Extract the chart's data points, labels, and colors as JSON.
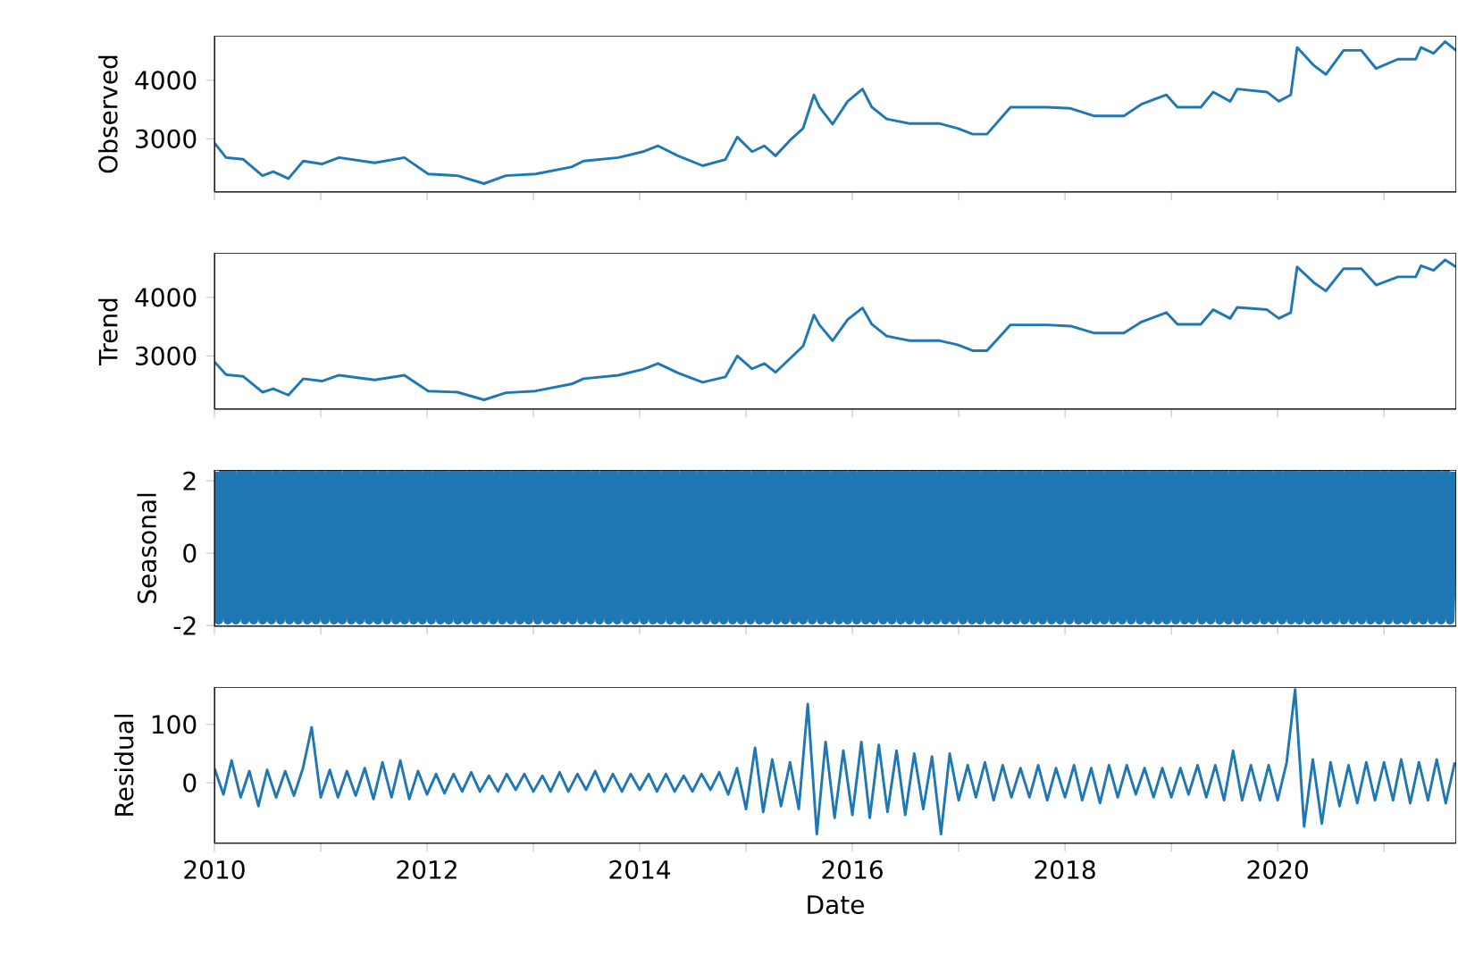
{
  "chart_data": [
    {
      "type": "line",
      "ylabel": "Observed",
      "color": "#1f77b4",
      "tick_labels": "y",
      "xlim": [
        "2010-01-01",
        "2021-09-06"
      ],
      "ylim": [
        2090,
        4760
      ],
      "yticks": [
        3000,
        4000
      ],
      "xticks": [
        "2010",
        {
          "value": "2011",
          "label": null
        },
        "2012",
        {
          "value": "2013",
          "label": null
        },
        "2014",
        {
          "value": "2015",
          "label": null
        },
        "2016",
        {
          "value": "2017",
          "label": null
        },
        "2018",
        {
          "value": "2019",
          "label": null
        },
        "2020",
        {
          "value": "2021",
          "label": null
        }
      ],
      "x": [
        "2010-01-01",
        "2010-02-10",
        "2010-04-10",
        "2010-06-15",
        "2010-07-22",
        "2010-09-12",
        "2010-11-02",
        "2011-01-05",
        "2011-03-05",
        "2011-07-05",
        "2011-10-15",
        "2012-01-05",
        "2012-04-15",
        "2012-07-15",
        "2012-09-28",
        "2013-01-08",
        "2013-05-12",
        "2013-06-22",
        "2013-10-20",
        "2014-01-12",
        "2014-03-05",
        "2014-05-12",
        "2014-08-05",
        "2014-10-22",
        "2014-12-02",
        "2015-01-22",
        "2015-03-05",
        "2015-04-12",
        "2015-06-02",
        "2015-07-16",
        "2015-08-22",
        "2015-09-10",
        "2015-10-25",
        "2015-12-16",
        "2016-02-05",
        "2016-03-08",
        "2016-04-28",
        "2016-07-16",
        "2016-10-28",
        "2016-12-28",
        "2017-02-18",
        "2017-04-08",
        "2017-06-28",
        "2017-10-30",
        "2018-01-20",
        "2018-04-12",
        "2018-07-22",
        "2018-09-20",
        "2018-12-15",
        "2019-01-22",
        "2019-04-12",
        "2019-05-25",
        "2019-07-22",
        "2019-08-15",
        "2019-11-25",
        "2020-01-05",
        "2020-02-15",
        "2020-03-08",
        "2020-05-05",
        "2020-06-15",
        "2020-08-15",
        "2020-10-15",
        "2020-12-05",
        "2021-02-18",
        "2021-04-20",
        "2021-05-08",
        "2021-06-20",
        "2021-07-30",
        "2021-09-05"
      ],
      "values": [
        2930,
        2680,
        2650,
        2370,
        2440,
        2320,
        2620,
        2570,
        2680,
        2590,
        2680,
        2400,
        2370,
        2235,
        2370,
        2400,
        2520,
        2620,
        2680,
        2780,
        2880,
        2710,
        2540,
        2645,
        3030,
        2780,
        2880,
        2710,
        2980,
        3180,
        3750,
        3540,
        3250,
        3640,
        3850,
        3540,
        3340,
        3260,
        3260,
        3180,
        3080,
        3080,
        3540,
        3540,
        3520,
        3390,
        3390,
        3590,
        3750,
        3540,
        3540,
        3800,
        3640,
        3850,
        3800,
        3640,
        3750,
        4560,
        4250,
        4100,
        4510,
        4510,
        4200,
        4360,
        4360,
        4560,
        4460,
        4660,
        4510
      ]
    },
    {
      "type": "line",
      "ylabel": "Trend",
      "color": "#1f77b4",
      "tick_labels": "y",
      "xlim": [
        "2010-01-01",
        "2021-09-06"
      ],
      "ylim": [
        2090,
        4760
      ],
      "yticks": [
        3000,
        4000
      ],
      "xticks": [
        "2010",
        {
          "value": "2011",
          "label": null
        },
        "2012",
        {
          "value": "2013",
          "label": null
        },
        "2014",
        {
          "value": "2015",
          "label": null
        },
        "2016",
        {
          "value": "2017",
          "label": null
        },
        "2018",
        {
          "value": "2019",
          "label": null
        },
        "2020",
        {
          "value": "2021",
          "label": null
        }
      ],
      "x": [
        "2010-01-01",
        "2010-02-10",
        "2010-04-10",
        "2010-06-15",
        "2010-07-22",
        "2010-09-12",
        "2010-11-02",
        "2011-01-05",
        "2011-03-05",
        "2011-07-05",
        "2011-10-15",
        "2012-01-05",
        "2012-04-15",
        "2012-07-15",
        "2012-09-28",
        "2013-01-08",
        "2013-05-12",
        "2013-06-22",
        "2013-10-20",
        "2014-01-12",
        "2014-03-05",
        "2014-05-12",
        "2014-08-05",
        "2014-10-22",
        "2014-12-02",
        "2015-01-22",
        "2015-03-05",
        "2015-04-12",
        "2015-06-02",
        "2015-07-16",
        "2015-08-22",
        "2015-09-10",
        "2015-10-25",
        "2015-12-16",
        "2016-02-05",
        "2016-03-08",
        "2016-04-28",
        "2016-07-16",
        "2016-10-28",
        "2016-12-28",
        "2017-02-18",
        "2017-04-08",
        "2017-06-28",
        "2017-10-30",
        "2018-01-20",
        "2018-04-12",
        "2018-07-22",
        "2018-09-20",
        "2018-12-15",
        "2019-01-22",
        "2019-04-12",
        "2019-05-25",
        "2019-07-22",
        "2019-08-15",
        "2019-11-25",
        "2020-01-05",
        "2020-02-15",
        "2020-03-08",
        "2020-05-05",
        "2020-06-15",
        "2020-08-15",
        "2020-10-15",
        "2020-12-05",
        "2021-02-18",
        "2021-04-20",
        "2021-05-08",
        "2021-06-20",
        "2021-07-30",
        "2021-09-05"
      ],
      "values": [
        2900,
        2680,
        2650,
        2380,
        2440,
        2330,
        2610,
        2570,
        2670,
        2590,
        2670,
        2400,
        2380,
        2250,
        2370,
        2400,
        2520,
        2610,
        2670,
        2770,
        2870,
        2710,
        2550,
        2640,
        3000,
        2780,
        2870,
        2720,
        2960,
        3170,
        3700,
        3530,
        3260,
        3620,
        3820,
        3540,
        3340,
        3260,
        3260,
        3190,
        3090,
        3090,
        3530,
        3530,
        3510,
        3390,
        3390,
        3580,
        3740,
        3540,
        3540,
        3790,
        3640,
        3830,
        3790,
        3640,
        3740,
        4520,
        4250,
        4110,
        4490,
        4490,
        4210,
        4350,
        4350,
        4540,
        4460,
        4640,
        4520
      ]
    },
    {
      "type": "line",
      "ylabel": "Seasonal",
      "color": "#1f77b4",
      "tick_labels": "y",
      "xlim": [
        "2010-01-01",
        "2021-09-06"
      ],
      "ylim": [
        -2.02,
        2.3
      ],
      "yticks": [
        -2,
        0,
        2
      ],
      "xticks": [
        "2010",
        {
          "value": "2011",
          "label": null
        },
        "2012",
        {
          "value": "2013",
          "label": null
        },
        "2014",
        {
          "value": "2015",
          "label": null
        },
        "2016",
        {
          "value": "2017",
          "label": null
        },
        "2018",
        {
          "value": "2019",
          "label": null
        },
        "2020",
        {
          "value": "2021",
          "label": null
        }
      ],
      "x": [
        "2010-01-01",
        "2010-01-16",
        "2010-02-01",
        "2010-02-16",
        "2010-03-01",
        "2010-03-16",
        "2010-04-01",
        "2010-04-16",
        "2010-05-01",
        "2010-05-16",
        "2010-06-01",
        "2010-06-16",
        "2010-07-01",
        "2010-07-16",
        "2010-08-01",
        "2010-08-16",
        "2010-09-01",
        "2010-09-16",
        "2010-10-01",
        "2010-10-16",
        "2010-11-01",
        "2010-11-16",
        "2010-12-01",
        "2010-12-16",
        "2011-01-01",
        "2011-01-16",
        "2011-02-01",
        "2011-02-16",
        "2011-03-01",
        "2011-03-16",
        "2011-04-01",
        "2011-04-16",
        "2011-05-01",
        "2011-05-16",
        "2011-06-01",
        "2011-06-16",
        "2011-07-01",
        "2011-07-16",
        "2011-08-01",
        "2011-08-16",
        "2011-09-01",
        "2011-09-16",
        "2011-10-01",
        "2011-10-16",
        "2011-11-01",
        "2011-11-16",
        "2011-12-01",
        "2011-12-16",
        "2012-01-01",
        "2012-01-16",
        "2012-02-01",
        "2012-02-16",
        "2012-03-01",
        "2012-03-16",
        "2012-04-01",
        "2012-04-16",
        "2012-05-01",
        "2012-05-16",
        "2012-06-01",
        "2012-06-16",
        "2012-07-01",
        "2012-07-16",
        "2012-08-01",
        "2012-08-16",
        "2012-09-01",
        "2012-09-16",
        "2012-10-01",
        "2012-10-16",
        "2012-11-01",
        "2012-11-16",
        "2012-12-01",
        "2012-12-16",
        "2013-01-01",
        "2013-01-16",
        "2013-02-01",
        "2013-02-16",
        "2013-03-01",
        "2013-03-16",
        "2013-04-01",
        "2013-04-16",
        "2013-05-01",
        "2013-05-16",
        "2013-06-01",
        "2013-06-16",
        "2013-07-01",
        "2013-07-16",
        "2013-08-01",
        "2013-08-16",
        "2013-09-01",
        "2013-09-16",
        "2013-10-01",
        "2013-10-16",
        "2013-11-01",
        "2013-11-16",
        "2013-12-01",
        "2013-12-16",
        "2014-01-01",
        "2014-01-16",
        "2014-02-01",
        "2014-02-16",
        "2014-03-01",
        "2014-03-16",
        "2014-04-01",
        "2014-04-16",
        "2014-05-01",
        "2014-05-16",
        "2014-06-01",
        "2014-06-16",
        "2014-07-01",
        "2014-07-16",
        "2014-08-01",
        "2014-08-16",
        "2014-09-01",
        "2014-09-16",
        "2014-10-01",
        "2014-10-16",
        "2014-11-01",
        "2014-11-16",
        "2014-12-01",
        "2014-12-16",
        "2015-01-01",
        "2015-01-16",
        "2015-02-01",
        "2015-02-16",
        "2015-03-01",
        "2015-03-16",
        "2015-04-01",
        "2015-04-16",
        "2015-05-01",
        "2015-05-16",
        "2015-06-01",
        "2015-06-16",
        "2015-07-01",
        "2015-07-16",
        "2015-08-01",
        "2015-08-16",
        "2015-09-01",
        "2015-09-16",
        "2015-10-01",
        "2015-10-16",
        "2015-11-01",
        "2015-11-16",
        "2015-12-01",
        "2015-12-16",
        "2016-01-01",
        "2016-01-16",
        "2016-02-01",
        "2016-02-16",
        "2016-03-01",
        "2016-03-16",
        "2016-04-01",
        "2016-04-16",
        "2016-05-01",
        "2016-05-16",
        "2016-06-01",
        "2016-06-16",
        "2016-07-01",
        "2016-07-16",
        "2016-08-01",
        "2016-08-16",
        "2016-09-01",
        "2016-09-16",
        "2016-10-01",
        "2016-10-16",
        "2016-11-01",
        "2016-11-16",
        "2016-12-01",
        "2016-12-16",
        "2017-01-01",
        "2017-01-16",
        "2017-02-01",
        "2017-02-16",
        "2017-03-01",
        "2017-03-16",
        "2017-04-01",
        "2017-04-16",
        "2017-05-01",
        "2017-05-16",
        "2017-06-01",
        "2017-06-16",
        "2017-07-01",
        "2017-07-16",
        "2017-08-01",
        "2017-08-16",
        "2017-09-01",
        "2017-09-16",
        "2017-10-01",
        "2017-10-16",
        "2017-11-01",
        "2017-11-16",
        "2017-12-01",
        "2017-12-16",
        "2018-01-01",
        "2018-01-16",
        "2018-02-01",
        "2018-02-16",
        "2018-03-01",
        "2018-03-16",
        "2018-04-01",
        "2018-04-16",
        "2018-05-01",
        "2018-05-16",
        "2018-06-01",
        "2018-06-16",
        "2018-07-01",
        "2018-07-16",
        "2018-08-01",
        "2018-08-16",
        "2018-09-01",
        "2018-09-16",
        "2018-10-01",
        "2018-10-16",
        "2018-11-01",
        "2018-11-16",
        "2018-12-01",
        "2018-12-16",
        "2019-01-01",
        "2019-01-16",
        "2019-02-01",
        "2019-02-16",
        "2019-03-01",
        "2019-03-16",
        "2019-04-01",
        "2019-04-16",
        "2019-05-01",
        "2019-05-16",
        "2019-06-01",
        "2019-06-16",
        "2019-07-01",
        "2019-07-16",
        "2019-08-01",
        "2019-08-16",
        "2019-09-01",
        "2019-09-16",
        "2019-10-01",
        "2019-10-16",
        "2019-11-01",
        "2019-11-16",
        "2019-12-01",
        "2019-12-16",
        "2020-01-01",
        "2020-01-16",
        "2020-02-01",
        "2020-02-16",
        "2020-03-01",
        "2020-03-16",
        "2020-04-01",
        "2020-04-16",
        "2020-05-01",
        "2020-05-16",
        "2020-06-01",
        "2020-06-16",
        "2020-07-01",
        "2020-07-16",
        "2020-08-01",
        "2020-08-16",
        "2020-09-01",
        "2020-09-16",
        "2020-10-01",
        "2020-10-16",
        "2020-11-01",
        "2020-11-16",
        "2020-12-01",
        "2020-12-16",
        "2021-01-01",
        "2021-01-16",
        "2021-02-01",
        "2021-02-16",
        "2021-03-01",
        "2021-03-16",
        "2021-04-01",
        "2021-04-16",
        "2021-05-01",
        "2021-05-16",
        "2021-06-01",
        "2021-06-16",
        "2021-07-01",
        "2021-07-16",
        "2021-08-01",
        "2021-08-16",
        "2021-09-01"
      ],
      "values": [
        2.25,
        -1.85,
        2.25,
        -1.85,
        2.25,
        -1.85,
        2.25,
        -1.85,
        2.25,
        -1.85,
        2.25,
        -1.85,
        2.25,
        -1.85,
        2.25,
        -1.85,
        2.25,
        -1.85,
        2.25,
        -1.85,
        2.25,
        -1.85,
        2.25,
        -1.85,
        2.25,
        -1.85,
        2.25,
        -1.85,
        2.25,
        -1.85,
        2.25,
        -1.85,
        2.25,
        -1.85,
        2.25,
        -1.85,
        2.25,
        -1.85,
        2.25,
        -1.85,
        2.25,
        -1.85,
        2.25,
        -1.85,
        2.25,
        -1.85,
        2.25,
        -1.85,
        2.25,
        -1.85,
        2.25,
        -1.85,
        2.25,
        -1.85,
        2.25,
        -1.85,
        2.25,
        -1.85,
        2.25,
        -1.85,
        2.25,
        -1.85,
        2.25,
        -1.85,
        2.25,
        -1.85,
        2.25,
        -1.85,
        2.25,
        -1.85,
        2.25,
        -1.85,
        2.25,
        -1.85,
        2.25,
        -1.85,
        2.25,
        -1.85,
        2.25,
        -1.85,
        2.25,
        -1.85,
        2.25,
        -1.85,
        2.25,
        -1.85,
        2.25,
        -1.85,
        2.25,
        -1.85,
        2.25,
        -1.85,
        2.25,
        -1.85,
        2.25,
        -1.85,
        2.25,
        -1.85,
        2.25,
        -1.85,
        2.25,
        -1.85,
        2.25,
        -1.85,
        2.25,
        -1.85,
        2.25,
        -1.85,
        2.25,
        -1.85,
        2.25,
        -1.85,
        2.25,
        -1.85,
        2.25,
        -1.85,
        2.25,
        -1.85,
        2.25,
        -1.85,
        2.25,
        -1.85,
        2.25,
        -1.85,
        2.25,
        -1.85,
        2.25,
        -1.85,
        2.25,
        -1.85,
        2.25,
        -1.85,
        2.25,
        -1.85,
        2.25,
        -1.85,
        2.25,
        -1.85,
        2.25,
        -1.85,
        2.25,
        -1.85,
        2.25,
        -1.85,
        2.25,
        -1.85,
        2.25,
        -1.85,
        2.25,
        -1.85,
        2.25,
        -1.85,
        2.25,
        -1.85,
        2.25,
        -1.85,
        2.25,
        -1.85,
        2.25,
        -1.85,
        2.25,
        -1.85,
        2.25,
        -1.85,
        2.25,
        -1.85,
        2.25,
        -1.85,
        2.25,
        -1.85,
        2.25,
        -1.85,
        2.25,
        -1.85,
        2.25,
        -1.85,
        2.25,
        -1.85,
        2.25,
        -1.85,
        2.25,
        -1.85,
        2.25,
        -1.85,
        2.25,
        -1.85,
        2.25,
        -1.85,
        2.25,
        -1.85,
        2.25,
        -1.85,
        2.25,
        -1.85,
        2.25,
        -1.85,
        2.25,
        -1.85,
        2.25,
        -1.85,
        2.25,
        -1.85,
        2.25,
        -1.85,
        2.25,
        -1.85,
        2.25,
        -1.85,
        2.25,
        -1.85,
        2.25,
        -1.85,
        2.25,
        -1.85,
        2.25,
        -1.85,
        2.25,
        -1.85,
        2.25,
        -1.85,
        2.25,
        -1.85,
        2.25,
        -1.85,
        2.25,
        -1.85,
        2.25,
        -1.85,
        2.25,
        -1.85,
        2.25,
        -1.85,
        2.25,
        -1.85,
        2.25,
        -1.85,
        2.25,
        -1.85,
        2.25,
        -1.85,
        2.25,
        -1.85,
        2.25,
        -1.85,
        2.25,
        -1.85,
        2.25,
        -1.85,
        2.25,
        -1.85,
        2.25,
        -1.85,
        2.25,
        -1.85,
        2.25,
        -1.85,
        2.25,
        -1.85,
        2.25,
        -1.85,
        2.25,
        -1.85,
        2.25,
        -1.85,
        2.25,
        -1.85,
        2.25,
        -1.85,
        2.25,
        -1.85,
        2.25,
        -1.85,
        2.25,
        -1.85,
        2.25,
        -1.85,
        2.25,
        -1.85,
        2.25,
        -1.85,
        2.25
      ]
    },
    {
      "type": "line",
      "ylabel": "Residual",
      "xlabel": "Date",
      "color": "#1f77b4",
      "xlim": [
        "2010-01-01",
        "2021-09-06"
      ],
      "ylim": [
        -104,
        164
      ],
      "yticks": [
        0,
        100
      ],
      "xticks": [
        "2010",
        {
          "value": "2011",
          "label": null
        },
        "2012",
        {
          "value": "2013",
          "label": null
        },
        "2014",
        {
          "value": "2015",
          "label": null
        },
        "2016",
        {
          "value": "2017",
          "label": null
        },
        "2018",
        {
          "value": "2019",
          "label": null
        },
        "2020",
        {
          "value": "2021",
          "label": null
        }
      ],
      "x": [
        "2010-01",
        "2010-02",
        "2010-03",
        "2010-04",
        "2010-05",
        "2010-06",
        "2010-07",
        "2010-08",
        "2010-09",
        "2010-10",
        "2010-11",
        "2010-12",
        "2011-01",
        "2011-02",
        "2011-03",
        "2011-04",
        "2011-05",
        "2011-06",
        "2011-07",
        "2011-08",
        "2011-09",
        "2011-10",
        "2011-11",
        "2011-12",
        "2012-01",
        "2012-02",
        "2012-03",
        "2012-04",
        "2012-05",
        "2012-06",
        "2012-07",
        "2012-08",
        "2012-09",
        "2012-10",
        "2012-11",
        "2012-12",
        "2013-01",
        "2013-02",
        "2013-03",
        "2013-04",
        "2013-05",
        "2013-06",
        "2013-07",
        "2013-08",
        "2013-09",
        "2013-10",
        "2013-11",
        "2013-12",
        "2014-01",
        "2014-02",
        "2014-03",
        "2014-04",
        "2014-05",
        "2014-06",
        "2014-07",
        "2014-08",
        "2014-09",
        "2014-10",
        "2014-11",
        "2014-12",
        "2015-01",
        "2015-02",
        "2015-03",
        "2015-04",
        "2015-05",
        "2015-06",
        "2015-07",
        "2015-08",
        "2015-09",
        "2015-10",
        "2015-11",
        "2015-12",
        "2016-01",
        "2016-02",
        "2016-03",
        "2016-04",
        "2016-05",
        "2016-06",
        "2016-07",
        "2016-08",
        "2016-09",
        "2016-10",
        "2016-11",
        "2016-12",
        "2017-01",
        "2017-02",
        "2017-03",
        "2017-04",
        "2017-05",
        "2017-06",
        "2017-07",
        "2017-08",
        "2017-09",
        "2017-10",
        "2017-11",
        "2017-12",
        "2018-01",
        "2018-02",
        "2018-03",
        "2018-04",
        "2018-05",
        "2018-06",
        "2018-07",
        "2018-08",
        "2018-09",
        "2018-10",
        "2018-11",
        "2018-12",
        "2019-01",
        "2019-02",
        "2019-03",
        "2019-04",
        "2019-05",
        "2019-06",
        "2019-07",
        "2019-08",
        "2019-09",
        "2019-10",
        "2019-11",
        "2019-12",
        "2020-01",
        "2020-02",
        "2020-03",
        "2020-04",
        "2020-05",
        "2020-06",
        "2020-07",
        "2020-08",
        "2020-09",
        "2020-10",
        "2020-11",
        "2020-12",
        "2021-01",
        "2021-02",
        "2021-03",
        "2021-04",
        "2021-05",
        "2021-06",
        "2021-07",
        "2021-08",
        "2021-09"
      ],
      "values": [
        25,
        -20,
        38,
        -25,
        20,
        -40,
        22,
        -25,
        20,
        -22,
        25,
        95,
        -25,
        22,
        -25,
        20,
        -22,
        25,
        -28,
        35,
        -25,
        38,
        -28,
        20,
        -20,
        15,
        -18,
        15,
        -15,
        18,
        -15,
        12,
        -15,
        15,
        -12,
        15,
        -15,
        12,
        -15,
        18,
        -15,
        15,
        -12,
        20,
        -15,
        15,
        -15,
        15,
        -12,
        15,
        -15,
        15,
        -15,
        12,
        -15,
        15,
        -12,
        18,
        -20,
        25,
        -45,
        60,
        -50,
        40,
        -40,
        35,
        -45,
        135,
        -88,
        70,
        -60,
        55,
        -55,
        70,
        -60,
        65,
        -50,
        55,
        -55,
        50,
        -45,
        45,
        -88,
        50,
        -30,
        30,
        -25,
        35,
        -30,
        30,
        -25,
        25,
        -25,
        30,
        -30,
        25,
        -25,
        30,
        -30,
        25,
        -35,
        30,
        -25,
        30,
        -20,
        25,
        -25,
        25,
        -25,
        25,
        -20,
        30,
        -25,
        30,
        -30,
        55,
        -30,
        30,
        -30,
        30,
        -30,
        35,
        160,
        -75,
        40,
        -70,
        35,
        -40,
        30,
        -35,
        35,
        -30,
        35,
        -30,
        40,
        -35,
        35,
        -30,
        40,
        -35,
        35
      ]
    }
  ]
}
